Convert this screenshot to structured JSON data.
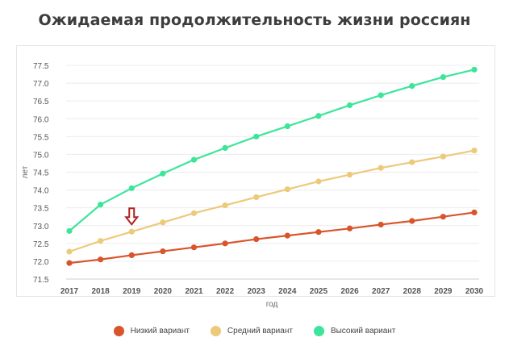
{
  "title": "Ожидаемая продолжительность жизни россиян",
  "chart_data": {
    "type": "line",
    "xlabel": "год",
    "ylabel": "лет",
    "categories": [
      "2017",
      "2018",
      "2019",
      "2020",
      "2021",
      "2022",
      "2023",
      "2024",
      "2025",
      "2026",
      "2027",
      "2028",
      "2029",
      "2030"
    ],
    "ylim": [
      71.5,
      77.5
    ],
    "yticks": [
      "71.5",
      "72.0",
      "72.5",
      "73.0",
      "73.5",
      "74.0",
      "74.5",
      "75.0",
      "75.5",
      "76.0",
      "76.5",
      "77.0",
      "77.5"
    ],
    "grid": "horizontal",
    "legend_position": "bottom",
    "series": [
      {
        "name": "Низкий вариант",
        "color": "#d9542b",
        "values": [
          71.95,
          72.05,
          72.17,
          72.28,
          72.39,
          72.5,
          72.62,
          72.72,
          72.82,
          72.92,
          73.03,
          73.13,
          73.25,
          73.37
        ]
      },
      {
        "name": "Средний вариант",
        "color": "#edc97a",
        "values": [
          72.27,
          72.57,
          72.83,
          73.09,
          73.35,
          73.57,
          73.8,
          74.02,
          74.24,
          74.43,
          74.62,
          74.78,
          74.94,
          75.11
        ]
      },
      {
        "name": "Высокий вариант",
        "color": "#3de59a",
        "values": [
          72.85,
          73.59,
          74.05,
          74.46,
          74.85,
          75.18,
          75.5,
          75.79,
          76.08,
          76.38,
          76.66,
          76.92,
          77.17,
          77.38
        ]
      }
    ],
    "annotation": {
      "type": "arrow",
      "at_category": "2019",
      "color": "#b22222"
    }
  }
}
